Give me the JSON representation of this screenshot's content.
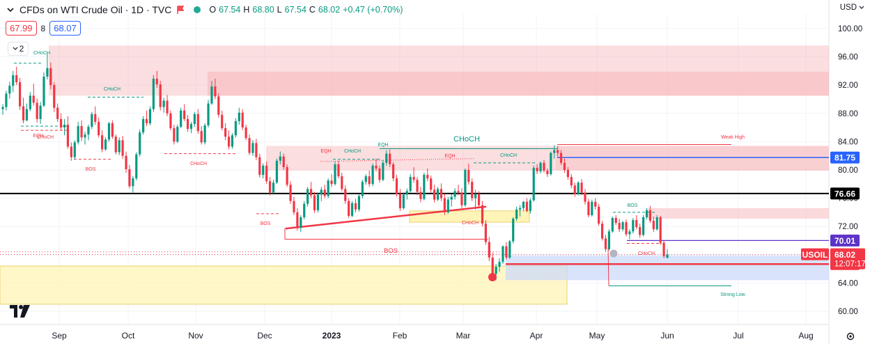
{
  "header": {
    "title": "CFDs on WTI Crude Oil · 1D · TVC",
    "ohlc": [
      {
        "k": "O",
        "v": "67.54"
      },
      {
        "k": "H",
        "v": "68.80"
      },
      {
        "k": "L",
        "v": "67.54"
      },
      {
        "k": "C",
        "v": "68.02"
      },
      {
        "k": "",
        "v": "+0.47 (+0.70%)"
      }
    ],
    "sell_price": "67.99",
    "spread": "8",
    "buy_price": "68.07",
    "indicators_count": "2",
    "currency": "USD"
  },
  "colors": {
    "up": "#089981",
    "down": "#f23645",
    "supply_zone": "#f7b6b9",
    "demand_yellow": "#fff3b0",
    "demand_blue": "#c9d9fb",
    "axis_text": "#131722"
  },
  "chart_data": {
    "type": "candlestick",
    "symbol": "USOIL",
    "x_ticks": [
      "Sep",
      "Oct",
      "Nov",
      "Dec",
      "2023",
      "Feb",
      "Mar",
      "Apr",
      "May",
      "Jun",
      "Jul",
      "Aug"
    ],
    "y_ticks": [
      "100.00",
      "96.00",
      "92.00",
      "88.00",
      "84.00",
      "80.00",
      "76.00",
      "72.00",
      "68.00",
      "64.00",
      "60.00"
    ],
    "ylim": [
      58.8,
      102.0
    ],
    "price_labels": [
      {
        "name": "level-81-75",
        "value": 81.75,
        "text": "81.75",
        "bg": "#2962ff",
        "fg": "#ffffff"
      },
      {
        "name": "level-76-66",
        "value": 76.66,
        "text": "76.66",
        "bg": "#000000",
        "fg": "#ffffff"
      },
      {
        "name": "level-70-01",
        "value": 70.01,
        "text": "70.01",
        "bg": "#5d33c8",
        "fg": "#ffffff"
      },
      {
        "name": "level-66-67",
        "value": 66.67,
        "text": "66.67",
        "bg": "#f23645",
        "fg": "#ffffff"
      }
    ],
    "last_price": {
      "symbol": "USOIL",
      "value": 68.02,
      "text": "68.02",
      "countdown": "12:07:17"
    },
    "candles": [
      [
        88.6,
        89.3,
        87.8,
        88.9
      ],
      [
        88.9,
        91.2,
        88.4,
        90.8
      ],
      [
        90.8,
        92.5,
        90.1,
        91.9
      ],
      [
        91.9,
        94.0,
        91.0,
        93.4
      ],
      [
        93.4,
        94.6,
        92.0,
        92.4
      ],
      [
        92.4,
        93.0,
        88.5,
        89.0
      ],
      [
        89.0,
        90.2,
        86.6,
        87.0
      ],
      [
        87.0,
        89.4,
        86.9,
        88.6
      ],
      [
        88.6,
        91.0,
        88.3,
        90.5
      ],
      [
        90.5,
        92.2,
        89.1,
        89.5
      ],
      [
        89.5,
        90.1,
        86.7,
        87.2
      ],
      [
        87.2,
        89.6,
        86.5,
        89.1
      ],
      [
        89.1,
        93.8,
        88.9,
        93.2
      ],
      [
        93.2,
        96.6,
        92.8,
        94.4
      ],
      [
        94.4,
        95.2,
        91.4,
        92.0
      ],
      [
        92.0,
        92.4,
        88.2,
        88.8
      ],
      [
        88.8,
        89.4,
        86.8,
        87.2
      ],
      [
        87.2,
        88.0,
        85.6,
        86.0
      ],
      [
        86.0,
        87.2,
        84.9,
        86.4
      ],
      [
        86.4,
        87.6,
        83.0,
        83.3
      ],
      [
        83.3,
        83.9,
        81.3,
        81.8
      ],
      [
        81.8,
        84.2,
        81.5,
        83.9
      ],
      [
        83.9,
        86.8,
        83.6,
        86.2
      ],
      [
        86.2,
        87.0,
        84.1,
        84.6
      ],
      [
        84.6,
        85.4,
        83.6,
        85.0
      ],
      [
        85.0,
        86.4,
        84.2,
        86.1
      ],
      [
        86.1,
        88.2,
        85.8,
        87.9
      ],
      [
        87.9,
        89.0,
        86.4,
        86.8
      ],
      [
        86.8,
        87.4,
        84.6,
        84.9
      ],
      [
        84.9,
        85.6,
        82.5,
        82.9
      ],
      [
        82.9,
        84.6,
        82.7,
        84.3
      ],
      [
        84.3,
        86.8,
        84.0,
        86.6
      ],
      [
        86.6,
        87.0,
        84.4,
        84.7
      ],
      [
        84.7,
        85.0,
        82.2,
        82.5
      ],
      [
        82.5,
        84.6,
        82.1,
        84.2
      ],
      [
        84.2,
        84.8,
        81.6,
        82.0
      ],
      [
        82.0,
        82.6,
        79.6,
        80.1
      ],
      [
        80.1,
        80.7,
        77.4,
        77.7
      ],
      [
        77.7,
        79.1,
        76.8,
        78.8
      ],
      [
        78.8,
        82.5,
        78.5,
        82.2
      ],
      [
        82.2,
        85.7,
        81.9,
        85.3
      ],
      [
        85.3,
        87.6,
        85.0,
        87.2
      ],
      [
        87.2,
        88.4,
        86.2,
        86.6
      ],
      [
        86.6,
        89.0,
        86.3,
        88.6
      ],
      [
        88.6,
        93.4,
        88.2,
        92.9
      ],
      [
        92.9,
        94.0,
        91.6,
        92.1
      ],
      [
        92.1,
        92.6,
        88.4,
        88.9
      ],
      [
        88.9,
        90.2,
        88.1,
        89.8
      ],
      [
        89.8,
        90.6,
        87.6,
        88.0
      ],
      [
        88.0,
        88.4,
        85.6,
        85.9
      ],
      [
        85.9,
        86.4,
        83.6,
        84.0
      ],
      [
        84.0,
        86.4,
        83.8,
        86.1
      ],
      [
        86.1,
        88.8,
        85.9,
        88.4
      ],
      [
        88.4,
        89.3,
        86.9,
        87.2
      ],
      [
        87.2,
        87.8,
        85.4,
        85.8
      ],
      [
        85.8,
        86.8,
        85.2,
        86.5
      ],
      [
        86.5,
        88.2,
        86.1,
        87.9
      ],
      [
        87.9,
        88.6,
        85.1,
        85.5
      ],
      [
        85.5,
        86.2,
        83.6,
        83.9
      ],
      [
        83.9,
        86.6,
        83.6,
        86.3
      ],
      [
        86.3,
        89.9,
        86.0,
        89.4
      ],
      [
        89.4,
        92.6,
        89.2,
        91.8
      ],
      [
        91.8,
        92.9,
        90.0,
        90.4
      ],
      [
        90.4,
        90.8,
        87.4,
        87.8
      ],
      [
        87.8,
        88.4,
        85.6,
        85.9
      ],
      [
        85.9,
        86.6,
        84.2,
        84.7
      ],
      [
        84.7,
        85.6,
        82.9,
        83.3
      ],
      [
        83.3,
        85.2,
        83.0,
        84.9
      ],
      [
        84.9,
        87.3,
        84.6,
        86.9
      ],
      [
        86.9,
        88.8,
        86.4,
        88.1
      ],
      [
        88.1,
        88.6,
        85.6,
        86.0
      ],
      [
        86.0,
        86.4,
        84.2,
        84.5
      ],
      [
        84.5,
        85.0,
        82.1,
        82.4
      ],
      [
        82.4,
        84.2,
        82.0,
        83.8
      ],
      [
        83.8,
        84.4,
        81.4,
        81.8
      ],
      [
        81.8,
        82.3,
        78.9,
        79.3
      ],
      [
        79.3,
        80.9,
        78.8,
        80.6
      ],
      [
        80.6,
        81.2,
        78.0,
        78.4
      ],
      [
        78.4,
        79.0,
        76.4,
        76.8
      ],
      [
        76.8,
        78.6,
        76.5,
        78.2
      ],
      [
        78.2,
        81.6,
        78.0,
        81.3
      ],
      [
        81.3,
        82.6,
        80.8,
        81.9
      ],
      [
        81.9,
        82.3,
        80.0,
        80.4
      ],
      [
        80.4,
        80.8,
        77.6,
        77.9
      ],
      [
        77.9,
        78.4,
        75.2,
        75.6
      ],
      [
        75.6,
        76.2,
        73.6,
        74.0
      ],
      [
        74.0,
        74.6,
        71.4,
        71.8
      ],
      [
        71.8,
        73.6,
        71.2,
        73.3
      ],
      [
        73.3,
        75.6,
        73.0,
        75.2
      ],
      [
        75.2,
        77.6,
        74.8,
        77.3
      ],
      [
        77.3,
        78.3,
        76.0,
        76.4
      ],
      [
        76.4,
        76.9,
        73.9,
        74.3
      ],
      [
        74.3,
        76.8,
        74.0,
        76.5
      ],
      [
        76.5,
        77.6,
        75.6,
        77.2
      ],
      [
        77.2,
        77.9,
        76.0,
        76.3
      ],
      [
        76.3,
        78.8,
        76.0,
        78.5
      ],
      [
        78.5,
        79.4,
        77.6,
        78.0
      ],
      [
        78.0,
        81.2,
        77.8,
        80.8
      ],
      [
        80.8,
        81.3,
        78.8,
        79.1
      ],
      [
        79.1,
        79.6,
        77.0,
        77.3
      ],
      [
        77.3,
        77.8,
        75.2,
        75.6
      ],
      [
        75.6,
        76.0,
        73.2,
        73.5
      ],
      [
        73.5,
        75.6,
        73.3,
        75.3
      ],
      [
        75.3,
        75.9,
        74.0,
        74.4
      ],
      [
        74.4,
        76.6,
        74.1,
        76.3
      ],
      [
        76.3,
        78.6,
        76.0,
        78.3
      ],
      [
        78.3,
        79.4,
        77.9,
        79.1
      ],
      [
        79.1,
        79.9,
        77.6,
        78.0
      ],
      [
        78.0,
        80.9,
        77.7,
        80.6
      ],
      [
        80.6,
        81.6,
        79.8,
        80.2
      ],
      [
        80.2,
        80.6,
        78.2,
        78.6
      ],
      [
        78.6,
        81.4,
        78.4,
        81.0
      ],
      [
        81.0,
        82.8,
        80.6,
        82.3
      ],
      [
        82.3,
        82.9,
        80.4,
        80.8
      ],
      [
        80.8,
        81.1,
        78.4,
        78.8
      ],
      [
        78.8,
        79.3,
        76.2,
        76.6
      ],
      [
        76.6,
        77.3,
        74.2,
        74.6
      ],
      [
        74.6,
        76.8,
        74.4,
        76.5
      ],
      [
        76.5,
        77.4,
        75.8,
        77.0
      ],
      [
        77.0,
        79.4,
        76.8,
        79.0
      ],
      [
        79.0,
        80.4,
        78.2,
        78.6
      ],
      [
        78.6,
        79.0,
        76.4,
        76.9
      ],
      [
        76.9,
        77.6,
        75.4,
        75.9
      ],
      [
        75.9,
        79.6,
        75.7,
        79.3
      ],
      [
        79.3,
        80.2,
        78.4,
        78.8
      ],
      [
        78.8,
        79.2,
        76.8,
        77.2
      ],
      [
        77.2,
        77.9,
        75.4,
        75.8
      ],
      [
        75.8,
        77.6,
        75.6,
        77.3
      ],
      [
        77.3,
        78.1,
        75.6,
        76.0
      ],
      [
        76.0,
        76.6,
        73.6,
        74.0
      ],
      [
        74.0,
        76.2,
        73.8,
        75.8
      ],
      [
        75.8,
        76.6,
        74.8,
        76.2
      ],
      [
        76.2,
        77.4,
        75.8,
        77.0
      ],
      [
        77.0,
        77.9,
        76.4,
        76.8
      ],
      [
        76.8,
        77.4,
        74.6,
        75.0
      ],
      [
        75.0,
        80.2,
        74.8,
        80.0
      ],
      [
        80.0,
        80.9,
        77.9,
        78.3
      ],
      [
        78.3,
        78.8,
        75.6,
        76.0
      ],
      [
        76.0,
        77.2,
        74.4,
        76.6
      ],
      [
        76.6,
        77.0,
        74.6,
        75.0
      ],
      [
        75.0,
        75.6,
        72.0,
        72.4
      ],
      [
        72.4,
        72.9,
        69.4,
        69.8
      ],
      [
        69.8,
        70.5,
        67.1,
        67.6
      ],
      [
        67.6,
        68.3,
        64.9,
        65.3
      ],
      [
        65.3,
        66.7,
        64.4,
        66.3
      ],
      [
        66.3,
        67.5,
        65.6,
        67.0
      ],
      [
        67.0,
        69.3,
        66.7,
        69.2
      ],
      [
        69.2,
        69.8,
        67.3,
        67.6
      ],
      [
        67.6,
        70.1,
        67.4,
        69.9
      ],
      [
        69.9,
        73.3,
        69.6,
        73.1
      ],
      [
        73.1,
        74.8,
        72.8,
        74.4
      ],
      [
        74.4,
        75.0,
        73.4,
        74.6
      ],
      [
        74.6,
        75.6,
        74.2,
        75.5
      ],
      [
        75.5,
        76.0,
        74.0,
        74.2
      ],
      [
        74.2,
        76.0,
        73.8,
        75.7
      ],
      [
        75.7,
        80.6,
        75.5,
        80.3
      ],
      [
        80.3,
        80.8,
        79.4,
        79.8
      ],
      [
        79.8,
        81.2,
        79.5,
        81.0
      ],
      [
        81.0,
        81.4,
        79.6,
        79.9
      ],
      [
        79.9,
        80.2,
        79.0,
        79.4
      ],
      [
        79.4,
        82.6,
        79.2,
        82.4
      ],
      [
        82.4,
        83.5,
        81.6,
        82.8
      ],
      [
        82.8,
        83.4,
        81.9,
        82.4
      ],
      [
        82.4,
        82.8,
        80.7,
        81.0
      ],
      [
        81.0,
        81.6,
        79.6,
        80.0
      ],
      [
        80.0,
        80.4,
        78.6,
        79.0
      ],
      [
        79.0,
        79.4,
        77.4,
        77.8
      ],
      [
        77.8,
        78.2,
        76.2,
        76.6
      ],
      [
        76.6,
        78.4,
        76.4,
        78.2
      ],
      [
        78.2,
        78.7,
        76.4,
        76.8
      ],
      [
        76.8,
        77.3,
        75.1,
        75.5
      ],
      [
        75.5,
        75.9,
        73.3,
        73.6
      ],
      [
        73.6,
        75.8,
        73.4,
        75.5
      ],
      [
        75.5,
        76.0,
        74.4,
        74.8
      ],
      [
        74.8,
        75.2,
        72.1,
        72.4
      ],
      [
        72.4,
        72.8,
        70.0,
        70.3
      ],
      [
        70.3,
        70.8,
        68.4,
        68.8
      ],
      [
        68.8,
        71.6,
        68.6,
        71.3
      ],
      [
        71.3,
        73.4,
        71.1,
        73.2
      ],
      [
        73.2,
        73.6,
        72.2,
        72.5
      ],
      [
        72.5,
        73.1,
        71.2,
        71.6
      ],
      [
        71.6,
        72.8,
        71.3,
        72.6
      ],
      [
        72.6,
        73.0,
        70.6,
        70.9
      ],
      [
        70.9,
        71.6,
        70.2,
        71.3
      ],
      [
        71.3,
        73.2,
        71.0,
        72.9
      ],
      [
        72.9,
        73.6,
        71.6,
        71.9
      ],
      [
        71.9,
        72.4,
        70.4,
        70.8
      ],
      [
        70.8,
        73.6,
        70.6,
        73.3
      ],
      [
        73.3,
        74.6,
        73.0,
        74.3
      ],
      [
        74.3,
        74.9,
        72.5,
        72.8
      ],
      [
        72.8,
        73.4,
        71.2,
        71.6
      ],
      [
        71.6,
        73.6,
        71.4,
        73.3
      ],
      [
        73.3,
        73.5,
        69.4,
        69.7
      ],
      [
        69.7,
        70.0,
        67.5,
        67.8
      ],
      [
        67.54,
        68.8,
        67.54,
        68.02
      ]
    ],
    "annotations": [
      {
        "text": "CHoCH",
        "price": 99.8
      },
      {
        "text": "EQH",
        "price": 85.9
      },
      {
        "text": "CHoCH",
        "price": 85.7
      },
      {
        "text": "CHoCH",
        "price": 90.6
      },
      {
        "text": "BOS",
        "price": 80.0
      },
      {
        "text": "CHoCH",
        "price": 80.8
      },
      {
        "text": "BOS",
        "price": 72.5
      },
      {
        "text": "BOS",
        "price": 68.5
      },
      {
        "text": "EQH",
        "price": 83.0
      },
      {
        "text": "CHoCH",
        "price": 83.0
      },
      {
        "text": "EQH",
        "price": 84.2
      },
      {
        "text": "EQH",
        "price": 82.0
      },
      {
        "text": "CHoCH",
        "price": 84.1
      },
      {
        "text": "CHoCH",
        "price": 82.2
      },
      {
        "text": "CHoCH",
        "price": 72.8
      },
      {
        "text": "Weak High",
        "price": 85.0
      },
      {
        "text": "BOS",
        "price": 74.8
      },
      {
        "text": "CHoCH",
        "price": 68.2
      },
      {
        "text": "Strong Low",
        "price": 62.2
      }
    ]
  }
}
